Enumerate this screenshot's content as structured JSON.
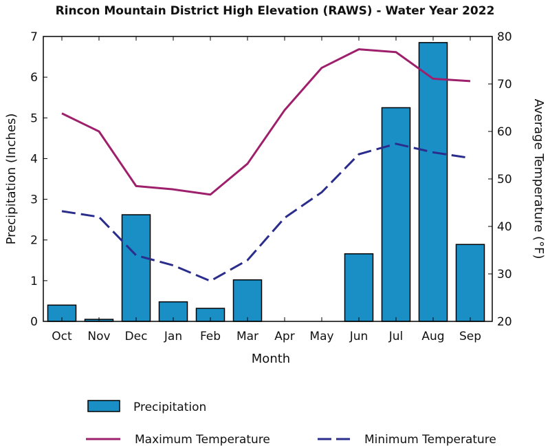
{
  "chart_data": {
    "type": "bar",
    "title": "Rincon Mountain District High Elevation (RAWS) - Water Year 2022",
    "xlabel": "Month",
    "ylabel": "Precipitation (Inches)",
    "y2label": "Average Temperature (°F)",
    "categories": [
      "Oct",
      "Nov",
      "Dec",
      "Jan",
      "Feb",
      "Mar",
      "Apr",
      "May",
      "Jun",
      "Jul",
      "Aug",
      "Sep"
    ],
    "ylim": [
      0,
      7
    ],
    "y2lim": [
      20,
      80
    ],
    "yticks": [
      "0",
      "1",
      "2",
      "3",
      "4",
      "5",
      "6",
      "7"
    ],
    "y2ticks": [
      "20",
      "30",
      "40",
      "50",
      "60",
      "70",
      "80"
    ],
    "grid": false,
    "legend_placement": "bottom",
    "series": [
      {
        "name": "Precipitation",
        "type": "bar",
        "axis": "left",
        "color": "#1a8fc6",
        "values": [
          0.4,
          0.05,
          2.62,
          0.48,
          0.32,
          1.02,
          0,
          0,
          1.66,
          5.25,
          6.85,
          1.89
        ]
      },
      {
        "name": "Maximum Temperature",
        "type": "line",
        "axis": "right",
        "color": "#9e1f6b",
        "dash": "solid",
        "values": [
          63.8,
          60.0,
          48.5,
          47.8,
          46.7,
          53.2,
          64.5,
          73.4,
          77.3,
          76.7,
          71.1,
          70.6
        ]
      },
      {
        "name": "Minimum Temperature",
        "type": "line",
        "axis": "right",
        "color": "#2b2d8c",
        "dash": "dashed",
        "values": [
          43.2,
          42.0,
          33.9,
          31.8,
          28.5,
          32.9,
          41.8,
          47.2,
          55.2,
          57.4,
          55.6,
          54.4
        ]
      }
    ]
  }
}
